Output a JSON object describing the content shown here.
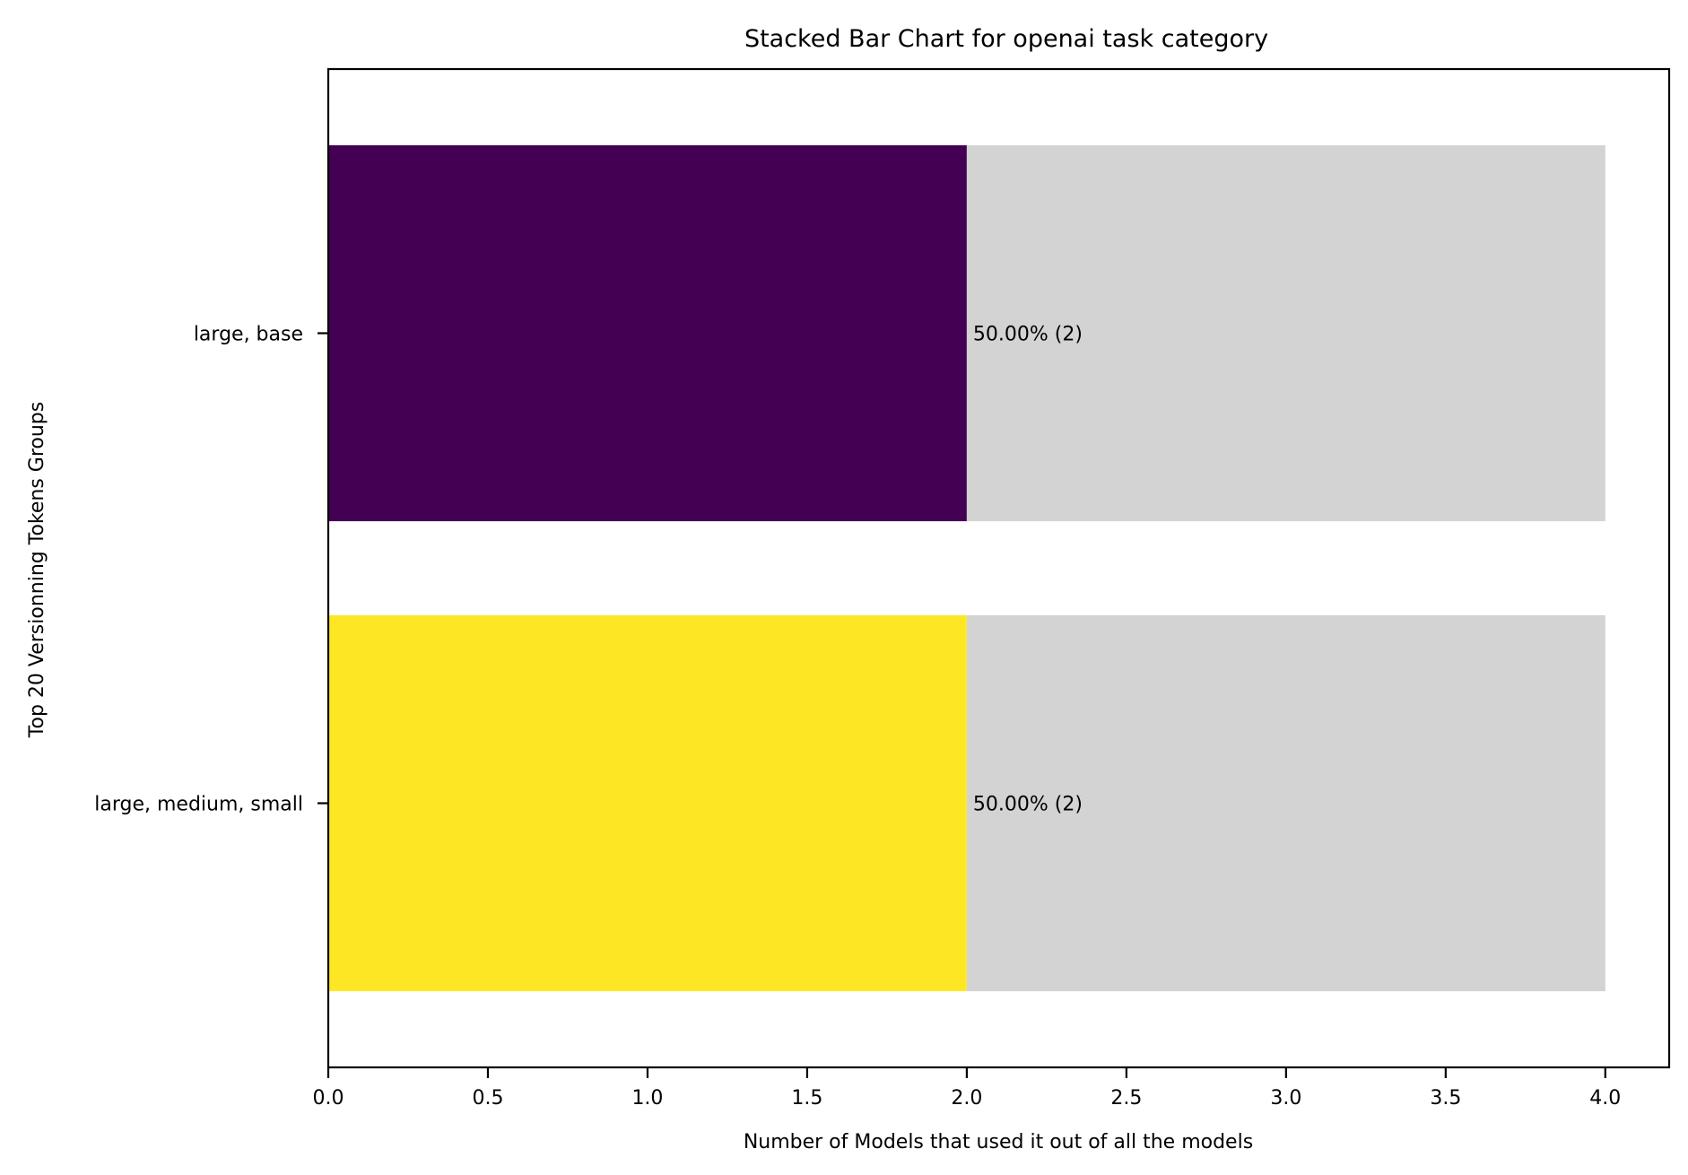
{
  "chart_data": {
    "type": "bar",
    "orientation": "horizontal",
    "stacked": true,
    "title": "Stacked Bar Chart for openai task category",
    "xlabel": "Number of Models that used it out of all the models",
    "ylabel": "Top 20 Versionning Tokens Groups",
    "xlim": [
      0,
      4.2
    ],
    "xticks": [
      "0.0",
      "0.5",
      "1.0",
      "1.5",
      "2.0",
      "2.5",
      "3.0",
      "3.5",
      "4.0"
    ],
    "categories": [
      "large, base",
      "large, medium, small"
    ],
    "series": [
      {
        "role": "used",
        "values": [
          2,
          2
        ],
        "colors": [
          "#440154",
          "#fde725"
        ]
      },
      {
        "role": "remaining",
        "values": [
          2,
          2
        ],
        "color": "#d3d3d3"
      }
    ],
    "data_labels": [
      "50.00% (2)",
      "50.00% (2)"
    ],
    "grid": false,
    "legend": "none"
  }
}
